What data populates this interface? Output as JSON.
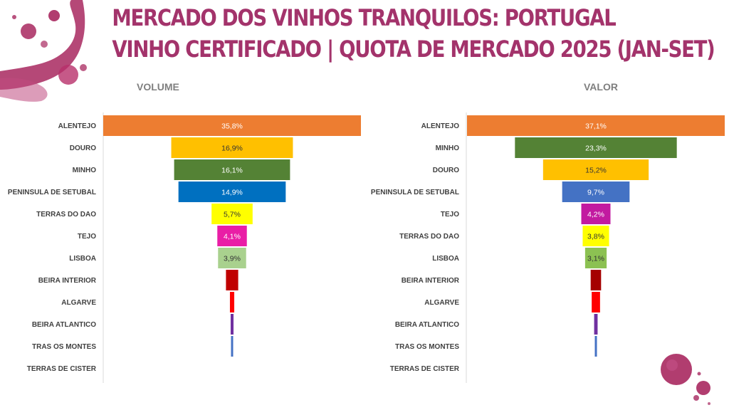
{
  "title": {
    "line1": "MERCADO DOS VINHOS TRANQUILOS: PORTUGAL",
    "line2": "VINHO CERTIFICADO | QUOTA DE MERCADO 2025 (JAN-SET)"
  },
  "colors": {
    "title": "#a3336b",
    "stain": "#a8285f"
  },
  "chart_data": [
    {
      "type": "bar",
      "subtype": "funnel",
      "title": "VOLUME",
      "unit": "%",
      "categories": [
        "ALENTEJO",
        "DOURO",
        "MINHO",
        "PENINSULA DE SETUBAL",
        "TERRAS DO DAO",
        "TEJO",
        "LISBOA",
        "BEIRA INTERIOR",
        "ALGARVE",
        "BEIRA ATLANTICO",
        "TRAS OS MONTES",
        "TERRAS DE CISTER"
      ],
      "values": [
        35.8,
        16.9,
        16.1,
        14.9,
        5.7,
        4.1,
        3.9,
        1.7,
        0.6,
        0.4,
        0.2,
        0.0
      ],
      "labels": [
        "35,8%",
        "16,9%",
        "16,1%",
        "14,9%",
        "5,7%",
        "4,1%",
        "3,9%",
        "",
        "",
        "",
        "",
        ""
      ],
      "colors": [
        "#ed7d31",
        "#ffc000",
        "#548235",
        "#0070c0",
        "#ffff00",
        "#e91ea6",
        "#a9d18e",
        "#c00000",
        "#ff0000",
        "#7030a0",
        "#4472c4",
        "#d9d9d9"
      ],
      "label_colors": [
        "#ffffff",
        "#333333",
        "#ffffff",
        "#ffffff",
        "#333333",
        "#ffffff",
        "#333333",
        "",
        "",
        "",
        "",
        ""
      ]
    },
    {
      "type": "bar",
      "subtype": "funnel",
      "title": "VALOR",
      "unit": "%",
      "categories": [
        "ALENTEJO",
        "MINHO",
        "DOURO",
        "PENINSULA DE SETUBAL",
        "TEJO",
        "TERRAS DO DAO",
        "LISBOA",
        "BEIRA INTERIOR",
        "ALGARVE",
        "BEIRA ATLANTICO",
        "TRAS OS MONTES",
        "TERRAS DE CISTER"
      ],
      "values": [
        37.1,
        23.3,
        15.2,
        9.7,
        4.2,
        3.8,
        3.1,
        1.5,
        1.2,
        0.5,
        0.3,
        0.0
      ],
      "labels": [
        "37,1%",
        "23,3%",
        "15,2%",
        "9,7%",
        "4,2%",
        "3,8%",
        "3,1%",
        "",
        "",
        "",
        "",
        ""
      ],
      "colors": [
        "#ed7d31",
        "#548235",
        "#ffc000",
        "#4472c4",
        "#c21aa0",
        "#ffff00",
        "#8cc152",
        "#a50000",
        "#ff0000",
        "#7030a0",
        "#4472c4",
        "#d9d9d9"
      ],
      "label_colors": [
        "#ffffff",
        "#ffffff",
        "#333333",
        "#ffffff",
        "#ffffff",
        "#333333",
        "#333333",
        "",
        "",
        "",
        "",
        ""
      ]
    }
  ]
}
